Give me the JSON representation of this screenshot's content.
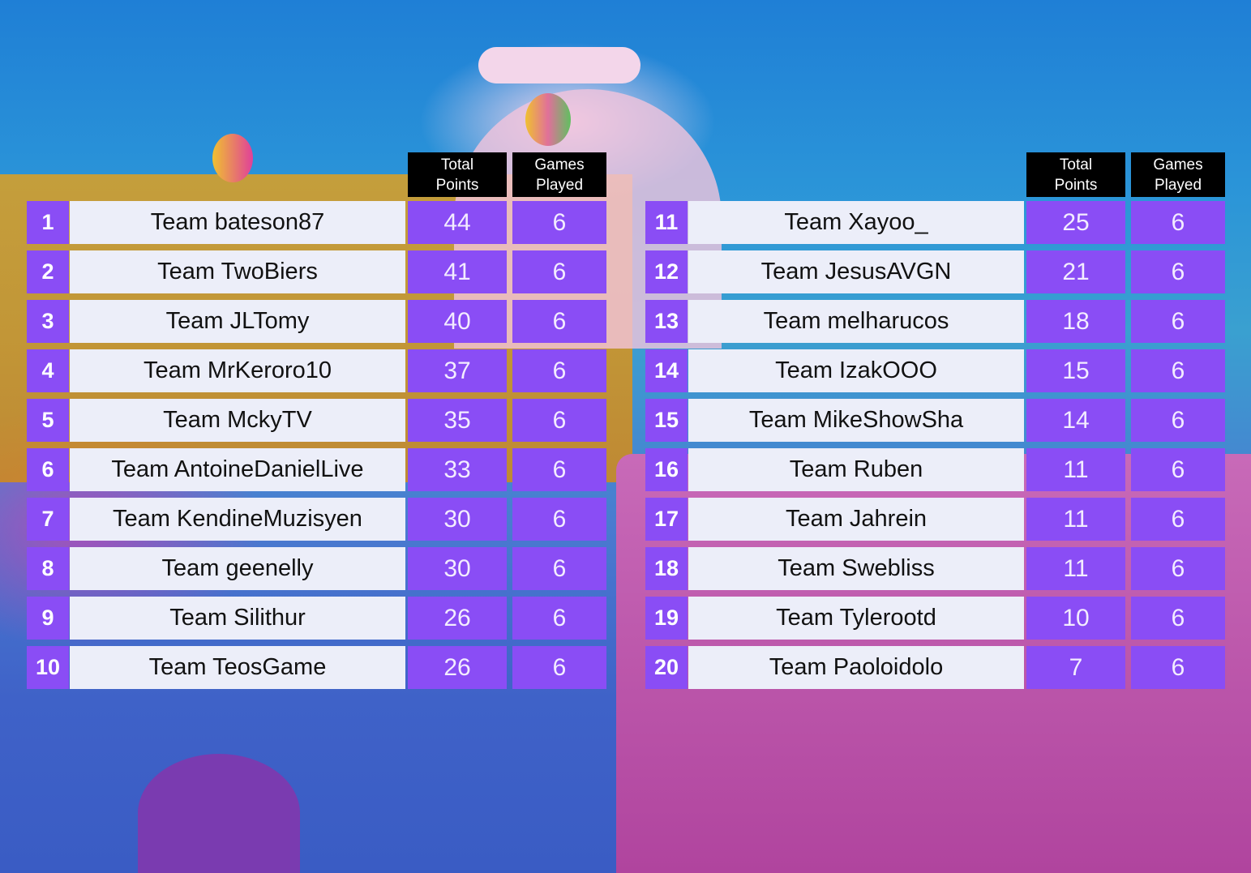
{
  "headers": {
    "total_points": [
      "Total",
      "Points"
    ],
    "games_played": [
      "Games",
      "Played"
    ]
  },
  "colors": {
    "rank_cell": "#8a4df5",
    "name_cell": "#eceef9",
    "header": "#000000"
  },
  "left_table": [
    {
      "rank": "1",
      "team": "Team bateson87",
      "points": "44",
      "games": "6"
    },
    {
      "rank": "2",
      "team": "Team TwoBiers",
      "points": "41",
      "games": "6"
    },
    {
      "rank": "3",
      "team": "Team JLTomy",
      "points": "40",
      "games": "6"
    },
    {
      "rank": "4",
      "team": "Team MrKeroro10",
      "points": "37",
      "games": "6"
    },
    {
      "rank": "5",
      "team": "Team MckyTV",
      "points": "35",
      "games": "6"
    },
    {
      "rank": "6",
      "team": "Team AntoineDanielLive",
      "points": "33",
      "games": "6"
    },
    {
      "rank": "7",
      "team": "Team KendineMuzisyen",
      "points": "30",
      "games": "6"
    },
    {
      "rank": "8",
      "team": "Team geenelly",
      "points": "30",
      "games": "6"
    },
    {
      "rank": "9",
      "team": "Team Silithur",
      "points": "26",
      "games": "6"
    },
    {
      "rank": "10",
      "team": "Team TeosGame",
      "points": "26",
      "games": "6"
    }
  ],
  "right_table": [
    {
      "rank": "11",
      "team": "Team Xayoo_",
      "points": "25",
      "games": "6"
    },
    {
      "rank": "12",
      "team": "Team JesusAVGN",
      "points": "21",
      "games": "6"
    },
    {
      "rank": "13",
      "team": "Team melharucos",
      "points": "18",
      "games": "6"
    },
    {
      "rank": "14",
      "team": "Team IzakOOO",
      "points": "15",
      "games": "6"
    },
    {
      "rank": "15",
      "team": "Team MikeShowSha",
      "points": "14",
      "games": "6"
    },
    {
      "rank": "16",
      "team": "Team Ruben",
      "points": "11",
      "games": "6"
    },
    {
      "rank": "17",
      "team": "Team Jahrein",
      "points": "11",
      "games": "6"
    },
    {
      "rank": "18",
      "team": "Team Swebliss",
      "points": "11",
      "games": "6"
    },
    {
      "rank": "19",
      "team": "Team Tylerootd",
      "points": "10",
      "games": "6"
    },
    {
      "rank": "20",
      "team": "Team Paoloidolo",
      "points": "7",
      "games": "6"
    }
  ]
}
